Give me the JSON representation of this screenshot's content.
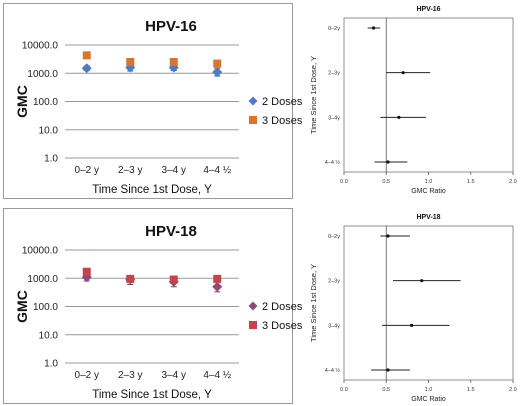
{
  "chart_data": [
    {
      "type": "scatter",
      "title": "HPV-16",
      "xlabel": "Time Since 1st Dose, Y",
      "ylabel": "GMC",
      "y_scale": "log",
      "ylim": [
        1.0,
        10000.0
      ],
      "y_ticks": [
        "10000.0",
        "1000.0",
        "100.0",
        "10.0",
        "1.0"
      ],
      "y_tick_values": [
        10000,
        1000,
        100,
        10,
        1
      ],
      "grid": true,
      "legend_position": "right",
      "categories": [
        "0–2 y",
        "2–3 y",
        "3–4 y",
        "4–4 ½"
      ],
      "series": [
        {
          "name": "2 Doses",
          "marker": "diamond",
          "color": "#4a7cc7",
          "values": [
            1500,
            1600,
            1600,
            1100
          ],
          "err_low": [
            1250,
            1200,
            1250,
            800
          ],
          "err_high": [
            1800,
            2100,
            2000,
            1500
          ]
        },
        {
          "name": "3 Doses",
          "marker": "square",
          "color": "#d9752f",
          "values": [
            4300,
            2500,
            2500,
            2200
          ],
          "err_low": [
            4000,
            2300,
            2300,
            2000
          ],
          "err_high": [
            4700,
            2800,
            2800,
            2500
          ]
        }
      ]
    },
    {
      "type": "forest",
      "title": "HPV-16",
      "xlabel": "GMC Ratio",
      "ylabel": "Time Since 1st Dose, Y",
      "xlim": [
        0.0,
        2.0
      ],
      "x_ticks": [
        "0.0",
        "0.5",
        "1.0",
        "1.5",
        "2.0"
      ],
      "x_tick_values": [
        0,
        0.5,
        1.0,
        1.5,
        2.0
      ],
      "reference_line": 0.5,
      "rows": [
        {
          "label": "0–2y",
          "estimate": 0.35,
          "lower": 0.28,
          "upper": 0.43
        },
        {
          "label": "2–3y",
          "estimate": 0.7,
          "lower": 0.5,
          "upper": 1.02
        },
        {
          "label": "3–4y",
          "estimate": 0.65,
          "lower": 0.43,
          "upper": 0.97
        },
        {
          "label": "4–4 ½",
          "estimate": 0.52,
          "lower": 0.36,
          "upper": 0.75
        }
      ]
    },
    {
      "type": "scatter",
      "title": "HPV-18",
      "xlabel": "Time Since 1st Dose, Y",
      "ylabel": "GMC",
      "y_scale": "log",
      "ylim": [
        1.0,
        10000.0
      ],
      "y_ticks": [
        "10000.0",
        "1000.0",
        "100.0",
        "10.0",
        "1.0"
      ],
      "y_tick_values": [
        10000,
        1000,
        100,
        10,
        1
      ],
      "grid": true,
      "legend_position": "right",
      "categories": [
        "0–2 y",
        "2–3 y",
        "3–4 y",
        "4–4 ½"
      ],
      "series": [
        {
          "name": "2 Doses",
          "marker": "diamond",
          "color": "#8e4a7a",
          "values": [
            1100,
            900,
            750,
            500
          ],
          "err_low": [
            800,
            600,
            500,
            330
          ],
          "err_high": [
            1500,
            1250,
            1100,
            750
          ]
        },
        {
          "name": "3 Doses",
          "marker": "square",
          "color": "#c8414b",
          "values": [
            1700,
            950,
            900,
            950
          ],
          "err_low": [
            1450,
            800,
            750,
            800
          ],
          "err_high": [
            2000,
            1100,
            1050,
            1100
          ]
        }
      ]
    },
    {
      "type": "forest",
      "title": "HPV-18",
      "xlabel": "GMC Ratio",
      "ylabel": "Time Since 1st Dose, Y",
      "xlim": [
        0.0,
        2.0
      ],
      "x_ticks": [
        "0.0",
        "0.5",
        "1.0",
        "1.5",
        "2.0"
      ],
      "x_tick_values": [
        0,
        0.5,
        1.0,
        1.5,
        2.0
      ],
      "reference_line": 0.5,
      "rows": [
        {
          "label": "0–2y",
          "estimate": 0.52,
          "lower": 0.43,
          "upper": 0.78
        },
        {
          "label": "2–3y",
          "estimate": 0.92,
          "lower": 0.58,
          "upper": 1.38
        },
        {
          "label": "3–4y",
          "estimate": 0.8,
          "lower": 0.45,
          "upper": 1.25
        },
        {
          "label": "4–4 ½",
          "estimate": 0.52,
          "lower": 0.32,
          "upper": 0.78
        }
      ]
    }
  ]
}
